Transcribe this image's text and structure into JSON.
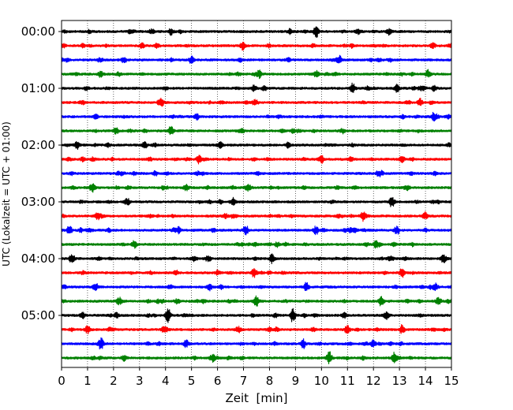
{
  "chart_data": {
    "type": "line",
    "title": "",
    "xlabel": "Zeit  [min]",
    "ylabel": "UTC (Lokalzeit = UTC + 01:00)",
    "xlim": [
      0,
      15
    ],
    "x_ticks": [
      "0",
      "1",
      "2",
      "3",
      "4",
      "5",
      "6",
      "7",
      "8",
      "9",
      "10",
      "11",
      "12",
      "13",
      "14",
      "15"
    ],
    "y_tick_labels": [
      "00:00",
      "01:00",
      "02:00",
      "03:00",
      "04:00",
      "05:00"
    ],
    "trace_interval_min": 15,
    "grid_x": true,
    "trace_colors": [
      "#000000",
      "#ff0000",
      "#0000ff",
      "#008000"
    ],
    "traces": [
      {
        "start": "00:00",
        "color": "#000000",
        "events": [
          [
            9.8,
            0.8
          ],
          [
            4.2,
            0.4
          ],
          [
            12.6,
            0.4
          ]
        ]
      },
      {
        "start": "00:15",
        "color": "#ff0000",
        "events": [
          [
            7.0,
            0.4
          ],
          [
            3.1,
            0.3
          ]
        ]
      },
      {
        "start": "00:30",
        "color": "#0000ff",
        "events": [
          [
            5.0,
            0.5
          ],
          [
            10.7,
            0.5
          ],
          [
            2.4,
            0.4
          ]
        ]
      },
      {
        "start": "00:45",
        "color": "#008000",
        "events": [
          [
            7.6,
            0.5
          ],
          [
            9.8,
            0.5
          ],
          [
            14.1,
            0.5
          ],
          [
            1.5,
            0.4
          ]
        ]
      },
      {
        "start": "01:00",
        "color": "#000000",
        "events": [
          [
            11.2,
            0.7
          ],
          [
            7.4,
            0.4
          ],
          [
            12.9,
            0.5
          ]
        ]
      },
      {
        "start": "01:15",
        "color": "#ff0000",
        "events": [
          [
            3.8,
            0.5
          ],
          [
            13.8,
            0.5
          ],
          [
            0.8,
            0.3
          ]
        ]
      },
      {
        "start": "01:30",
        "color": "#0000ff",
        "events": [
          [
            5.2,
            0.4
          ],
          [
            14.3,
            0.4
          ]
        ]
      },
      {
        "start": "01:45",
        "color": "#008000",
        "events": [
          [
            4.2,
            0.6
          ],
          [
            2.1,
            0.4
          ],
          [
            10.8,
            0.3
          ]
        ]
      },
      {
        "start": "02:00",
        "color": "#000000",
        "events": [
          [
            0.6,
            0.5
          ],
          [
            6.1,
            0.5
          ],
          [
            3.2,
            0.4
          ],
          [
            8.7,
            0.3
          ]
        ]
      },
      {
        "start": "02:15",
        "color": "#ff0000",
        "events": [
          [
            5.3,
            0.6
          ],
          [
            10.0,
            0.5
          ],
          [
            13.1,
            0.4
          ]
        ]
      },
      {
        "start": "02:30",
        "color": "#0000ff",
        "events": [
          [
            12.2,
            0.4
          ],
          [
            3.6,
            0.3
          ]
        ]
      },
      {
        "start": "02:45",
        "color": "#008000",
        "events": [
          [
            1.2,
            0.5
          ],
          [
            4.8,
            0.4
          ],
          [
            7.2,
            0.4
          ]
        ]
      },
      {
        "start": "03:00",
        "color": "#000000",
        "events": [
          [
            6.6,
            0.6
          ],
          [
            12.7,
            0.6
          ],
          [
            2.5,
            0.3
          ]
        ]
      },
      {
        "start": "03:15",
        "color": "#ff0000",
        "events": [
          [
            1.4,
            0.5
          ],
          [
            11.6,
            0.6
          ],
          [
            14.0,
            0.5
          ],
          [
            6.3,
            0.3
          ]
        ]
      },
      {
        "start": "03:30",
        "color": "#0000ff",
        "events": [
          [
            0.3,
            0.7
          ],
          [
            7.1,
            0.6
          ],
          [
            9.8,
            0.6
          ],
          [
            12.9,
            0.6
          ],
          [
            4.5,
            0.4
          ]
        ]
      },
      {
        "start": "03:45",
        "color": "#008000",
        "events": [
          [
            2.8,
            0.5
          ],
          [
            12.1,
            0.5
          ],
          [
            8.3,
            0.3
          ]
        ]
      },
      {
        "start": "04:00",
        "color": "#000000",
        "events": [
          [
            0.4,
            0.7
          ],
          [
            8.1,
            0.6
          ],
          [
            14.7,
            0.6
          ],
          [
            5.1,
            0.4
          ]
        ]
      },
      {
        "start": "04:15",
        "color": "#ff0000",
        "events": [
          [
            7.4,
            0.5
          ],
          [
            13.1,
            0.6
          ],
          [
            4.4,
            0.3
          ]
        ]
      },
      {
        "start": "04:30",
        "color": "#0000ff",
        "events": [
          [
            1.3,
            0.6
          ],
          [
            9.4,
            0.5
          ],
          [
            14.4,
            0.5
          ],
          [
            5.7,
            0.4
          ]
        ]
      },
      {
        "start": "04:45",
        "color": "#008000",
        "events": [
          [
            7.5,
            0.8
          ],
          [
            12.3,
            0.7
          ],
          [
            2.2,
            0.5
          ],
          [
            14.5,
            0.6
          ]
        ]
      },
      {
        "start": "05:00",
        "color": "#000000",
        "events": [
          [
            4.1,
            1.0
          ],
          [
            8.9,
            1.0
          ],
          [
            12.5,
            0.6
          ],
          [
            0.8,
            0.4
          ]
        ]
      },
      {
        "start": "05:15",
        "color": "#ff0000",
        "events": [
          [
            11.0,
            0.6
          ],
          [
            13.1,
            0.6
          ],
          [
            1.0,
            0.5
          ],
          [
            6.8,
            0.4
          ]
        ]
      },
      {
        "start": "05:30",
        "color": "#0000ff",
        "events": [
          [
            1.5,
            0.7
          ],
          [
            9.3,
            0.6
          ],
          [
            12.0,
            0.5
          ],
          [
            4.8,
            0.5
          ]
        ]
      },
      {
        "start": "05:45",
        "color": "#008000",
        "events": [
          [
            10.3,
            0.9
          ],
          [
            12.8,
            0.7
          ],
          [
            5.8,
            0.5
          ],
          [
            2.4,
            0.4
          ]
        ]
      }
    ]
  }
}
